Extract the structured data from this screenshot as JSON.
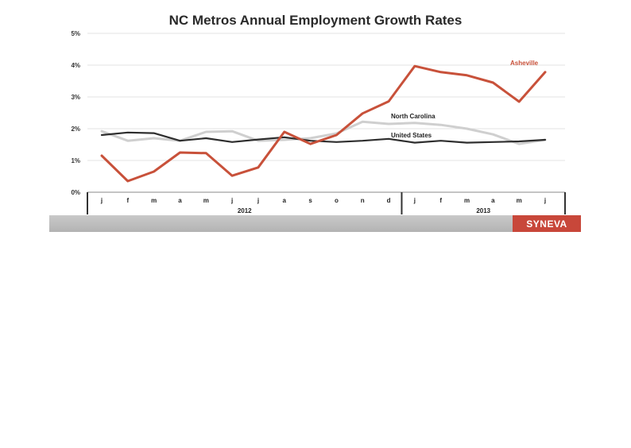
{
  "chart_data": {
    "type": "line",
    "title": "NC Metros Annual Employment Growth Rates",
    "xlabel": "",
    "ylabel": "",
    "ylim": [
      0,
      5
    ],
    "yticks": [
      {
        "value": 0,
        "label": "0%"
      },
      {
        "value": 1,
        "label": "1%"
      },
      {
        "value": 2,
        "label": "2%"
      },
      {
        "value": 3,
        "label": "3%"
      },
      {
        "value": 4,
        "label": "4%"
      },
      {
        "value": 5,
        "label": "5%"
      }
    ],
    "categories": [
      "j",
      "f",
      "m",
      "a",
      "m",
      "j",
      "j",
      "a",
      "s",
      "o",
      "n",
      "d",
      "j",
      "f",
      "m",
      "a",
      "m",
      "j"
    ],
    "year_groups": [
      {
        "label": "2012",
        "start": 0,
        "end": 11
      },
      {
        "label": "2013",
        "start": 12,
        "end": 17
      }
    ],
    "grid": true,
    "series": [
      {
        "name": "North Carolina",
        "color": "#cfcfcf",
        "values": [
          1.92,
          1.62,
          1.7,
          1.62,
          1.9,
          1.92,
          1.62,
          1.65,
          1.7,
          1.85,
          2.22,
          2.15,
          2.18,
          2.12,
          2.0,
          1.82,
          1.52,
          1.65
        ]
      },
      {
        "name": "United States",
        "color": "#2e2e2e",
        "values": [
          1.8,
          1.88,
          1.86,
          1.62,
          1.7,
          1.58,
          1.66,
          1.73,
          1.62,
          1.58,
          1.62,
          1.68,
          1.56,
          1.62,
          1.56,
          1.58,
          1.6,
          1.65
        ]
      },
      {
        "name": "Asheville",
        "color": "#c8513a",
        "values": [
          1.15,
          0.35,
          0.65,
          1.25,
          1.23,
          0.52,
          0.78,
          1.9,
          1.52,
          1.8,
          2.48,
          2.86,
          3.97,
          3.78,
          3.68,
          3.45,
          2.85,
          3.78
        ]
      }
    ]
  },
  "brand": {
    "logo_text": "SYNEVA",
    "color": "#c8473a"
  }
}
